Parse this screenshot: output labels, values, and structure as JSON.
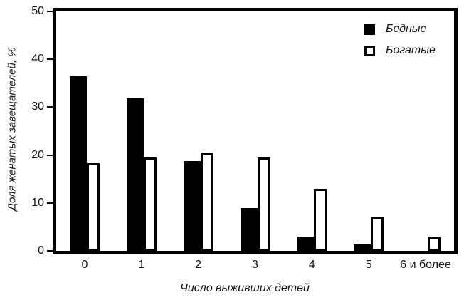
{
  "chart_data": {
    "type": "bar",
    "title": "",
    "categories": [
      "0",
      "1",
      "2",
      "3",
      "4",
      "5",
      "6 и более"
    ],
    "series": [
      {
        "name": "Бедные",
        "style": "filled-black",
        "values": [
          36.5,
          31.8,
          18.7,
          9.0,
          3.0,
          1.4,
          0
        ]
      },
      {
        "name": "Богатые",
        "style": "white-outlined",
        "values": [
          18.3,
          19.5,
          20.6,
          19.5,
          13.0,
          7.1,
          3.0
        ]
      }
    ],
    "xlabel": "Число выживших детей",
    "ylabel": "Доля женатых завещателей, %",
    "ylim": [
      0,
      50
    ],
    "yticks": [
      0,
      10,
      20,
      30,
      40,
      50
    ],
    "legend_position": "top-right",
    "grid": false
  },
  "colors": {
    "bar_fill": "#000000",
    "bar_outline": "#000000",
    "bar_white_fill": "#ffffff",
    "frame": "#000000",
    "text": "#161616",
    "background": "#ffffff"
  }
}
